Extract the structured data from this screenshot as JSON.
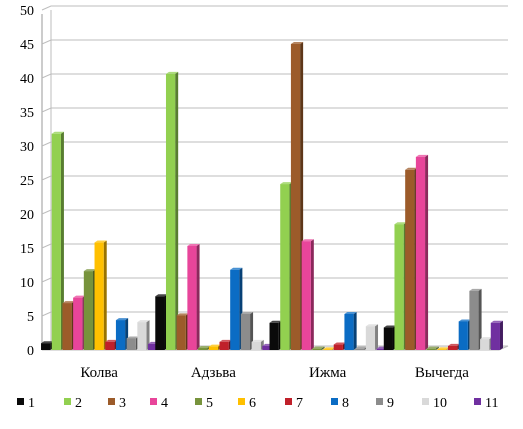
{
  "chart_data": {
    "type": "bar",
    "title": "",
    "xlabel": "",
    "ylabel": "",
    "ylim": [
      0,
      50
    ],
    "yticks": [
      "0",
      "5",
      "10",
      "15",
      "20",
      "25",
      "30",
      "35",
      "40",
      "45",
      "50"
    ],
    "grid": true,
    "legend_position": "bottom",
    "categories": [
      "Колва",
      "Адзьва",
      "Ижма",
      "Вычегда"
    ],
    "series": [
      {
        "name": "1",
        "color": "#0a0a0a",
        "values": [
          1.0,
          7.9,
          4.0,
          3.3
        ]
      },
      {
        "name": "2",
        "color": "#92d050",
        "values": [
          31.8,
          40.6,
          24.4,
          18.5
        ]
      },
      {
        "name": "3",
        "color": "#9c5b2a",
        "values": [
          6.9,
          5.1,
          45.0,
          26.5
        ]
      },
      {
        "name": "4",
        "color": "#e8459a",
        "values": [
          7.7,
          15.3,
          16.0,
          28.4
        ]
      },
      {
        "name": "5",
        "color": "#77933c",
        "values": [
          11.6,
          0.3,
          0.2,
          0.2
        ]
      },
      {
        "name": "6",
        "color": "#ffc000",
        "values": [
          15.8,
          0.5,
          0.1,
          0.1
        ]
      },
      {
        "name": "7",
        "color": "#c0202a",
        "values": [
          1.2,
          1.2,
          0.8,
          0.6
        ]
      },
      {
        "name": "8",
        "color": "#0b6cc4",
        "values": [
          4.4,
          11.8,
          5.3,
          4.2
        ]
      },
      {
        "name": "9",
        "color": "#8c8c8c",
        "values": [
          1.7,
          5.3,
          0.2,
          8.7
        ]
      },
      {
        "name": "10",
        "color": "#d9d9d9",
        "values": [
          4.1,
          1.2,
          3.5,
          1.6
        ]
      },
      {
        "name": "11",
        "color": "#7030a0",
        "values": [
          0.9,
          0.6,
          0.2,
          4.0
        ]
      }
    ]
  }
}
